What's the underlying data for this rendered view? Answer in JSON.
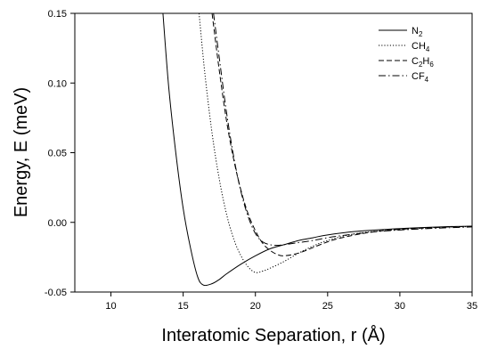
{
  "chart_data": {
    "type": "line",
    "title": "",
    "xlabel": "Interatomic Separation, r (Å)",
    "ylabel": "Energy, E (meV)",
    "xlim": [
      7.5,
      35
    ],
    "ylim": [
      -0.05,
      0.15
    ],
    "x_ticks": [
      10,
      15,
      20,
      25,
      30,
      35
    ],
    "x_tick_labels": [
      "10",
      "15",
      "20",
      "25",
      "30",
      "35"
    ],
    "y_ticks": [
      -0.05,
      0.0,
      0.05,
      0.1,
      0.15
    ],
    "y_tick_labels": [
      "-0.05",
      "0.00",
      "0.05",
      "0.10",
      "0.15"
    ],
    "grid": false,
    "legend_position": "top-right",
    "series": [
      {
        "name": "N2",
        "legend_parts": [
          {
            "text": "N",
            "sub": false
          },
          {
            "text": "2",
            "sub": true
          }
        ],
        "dash": "solid",
        "x": [
          13.6,
          14.0,
          14.5,
          15.0,
          15.5,
          16.0,
          16.4,
          17.0,
          17.5,
          18.0,
          19.0,
          20.0,
          21.0,
          22.0,
          23.0,
          24.0,
          25.0,
          27.0,
          30.0,
          33.0,
          35.0
        ],
        "y": [
          0.15,
          0.097,
          0.049,
          0.01,
          -0.018,
          -0.039,
          -0.045,
          -0.044,
          -0.041,
          -0.037,
          -0.03,
          -0.024,
          -0.019,
          -0.016,
          -0.013,
          -0.011,
          -0.009,
          -0.0065,
          -0.0045,
          -0.0032,
          -0.0027
        ]
      },
      {
        "name": "CH4",
        "legend_parts": [
          {
            "text": "CH",
            "sub": false
          },
          {
            "text": "4",
            "sub": true
          }
        ],
        "dash": "dotted",
        "x": [
          16.1,
          16.5,
          17.0,
          17.5,
          18.0,
          18.5,
          19.0,
          19.5,
          20.0,
          20.5,
          21.0,
          22.0,
          23.0,
          24.0,
          25.0,
          27.0,
          30.0,
          33.0,
          35.0
        ],
        "y": [
          0.15,
          0.107,
          0.064,
          0.031,
          0.006,
          -0.012,
          -0.024,
          -0.032,
          -0.036,
          -0.035,
          -0.033,
          -0.028,
          -0.022,
          -0.017,
          -0.013,
          -0.008,
          -0.005,
          -0.0035,
          -0.003
        ]
      },
      {
        "name": "C2H6",
        "legend_parts": [
          {
            "text": "C",
            "sub": false
          },
          {
            "text": "2",
            "sub": true
          },
          {
            "text": "H",
            "sub": false
          },
          {
            "text": "6",
            "sub": true
          }
        ],
        "dash": "dashed",
        "x": [
          17.0,
          17.5,
          18.0,
          18.5,
          19.0,
          19.5,
          20.0,
          20.5,
          21.0,
          21.5,
          22.0,
          23.0,
          24.0,
          25.0,
          26.0,
          28.0,
          30.0,
          33.0,
          35.0
        ],
        "y": [
          0.15,
          0.109,
          0.073,
          0.045,
          0.023,
          0.006,
          -0.006,
          -0.015,
          -0.02,
          -0.023,
          -0.024,
          -0.022,
          -0.018,
          -0.014,
          -0.011,
          -0.007,
          -0.005,
          -0.0035,
          -0.0028
        ]
      },
      {
        "name": "CF4",
        "legend_parts": [
          {
            "text": "CF",
            "sub": false
          },
          {
            "text": "4",
            "sub": true
          }
        ],
        "dash": "dashdot",
        "x": [
          17.1,
          17.5,
          18.0,
          18.5,
          19.0,
          19.5,
          20.0,
          20.5,
          21.0,
          21.5,
          22.0,
          23.0,
          24.0,
          25.0,
          26.0,
          28.0,
          30.0,
          33.0,
          35.0
        ],
        "y": [
          0.15,
          0.118,
          0.079,
          0.047,
          0.022,
          0.004,
          -0.008,
          -0.014,
          -0.016,
          -0.0165,
          -0.016,
          -0.0145,
          -0.013,
          -0.011,
          -0.0095,
          -0.007,
          -0.0055,
          -0.004,
          -0.0033
        ]
      }
    ]
  }
}
